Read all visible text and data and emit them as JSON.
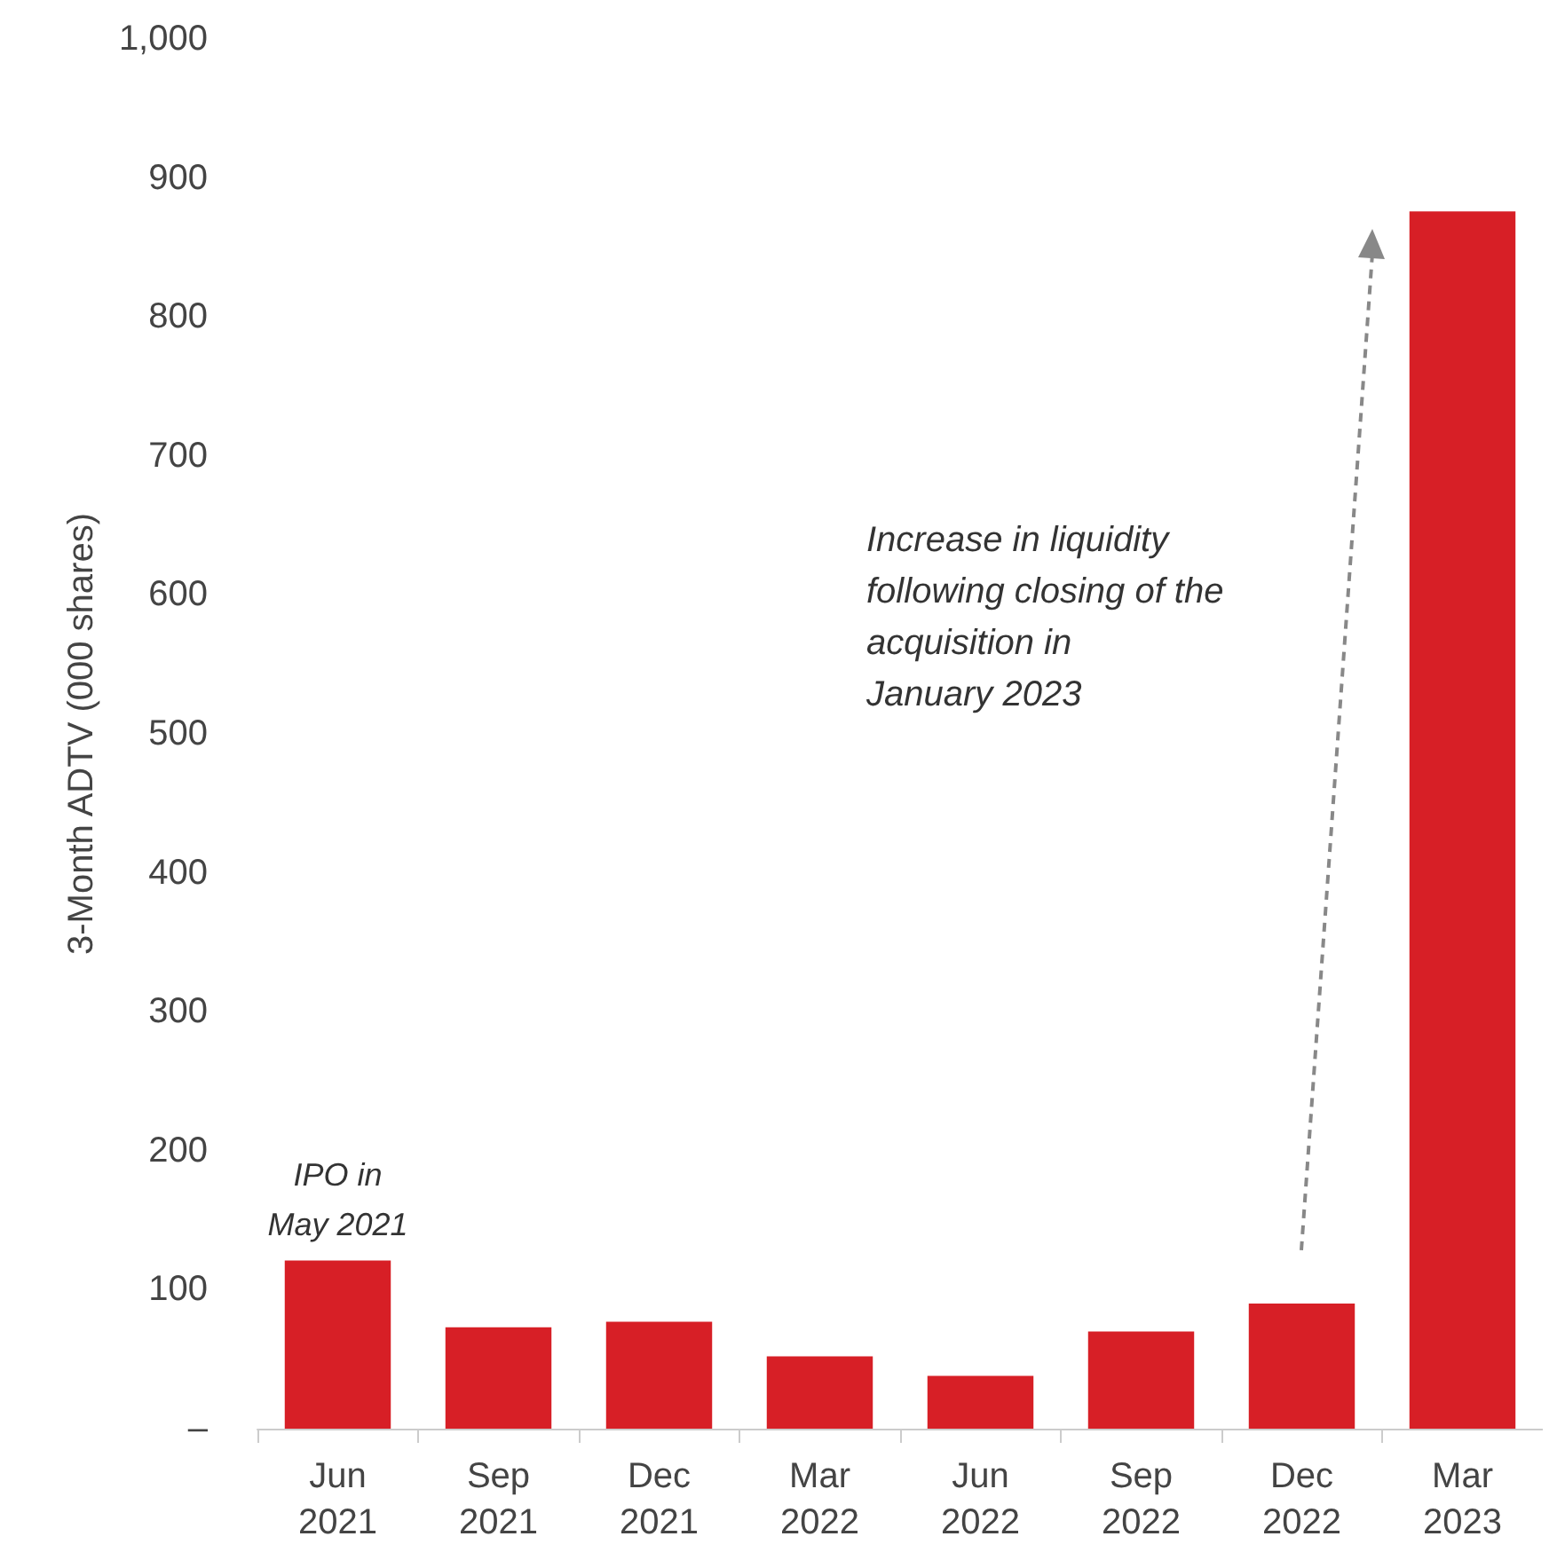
{
  "chart_data": {
    "type": "bar",
    "ylabel": "3-Month ADTV (000 shares)",
    "categories": [
      "Jun\n2021",
      "Sep\n2021",
      "Dec\n2021",
      "Mar\n2022",
      "Jun\n2022",
      "Sep\n2022",
      "Dec\n2022",
      "Mar\n2023"
    ],
    "values": [
      121,
      73,
      77,
      52,
      38,
      70,
      90,
      876
    ],
    "color": "#d71f26",
    "ylim": [
      0,
      1000
    ],
    "yticks": [
      {
        "value": 0,
        "label": "–"
      },
      100,
      200,
      300,
      400,
      500,
      600,
      700,
      800,
      900,
      {
        "value": 1000,
        "label": "1,000"
      }
    ],
    "grid": false,
    "annotations": [
      "IPO in\nMay 2021",
      "Increase in liquidity\nfollowing closing of the\nacquisition in\nJanuary 2023"
    ]
  }
}
